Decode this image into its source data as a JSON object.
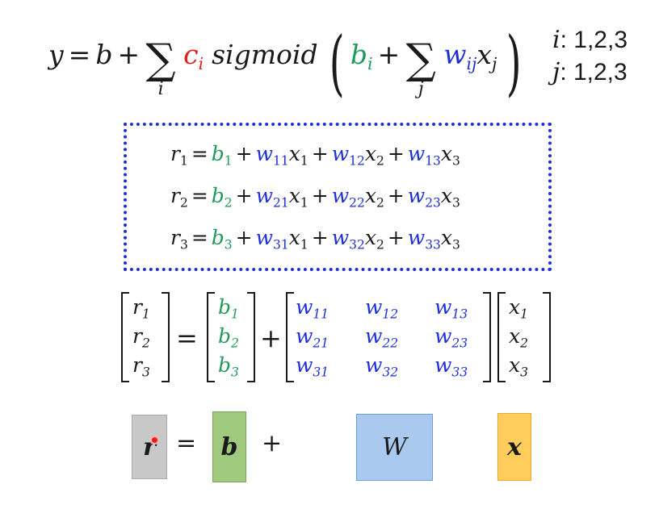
{
  "formula": {
    "y": "y",
    "eq": "=",
    "b": "b",
    "plus": "+",
    "sum": "∑",
    "sum_index_i": "i",
    "c": "c",
    "c_sub": "i",
    "sigmoid": "sigmoid",
    "lparen": "(",
    "rparen": ")",
    "b_i": "b",
    "b_i_sub": "i",
    "sum_index_j": "j",
    "w": "w",
    "w_sub": "ij",
    "x": "x",
    "x_sub": "j"
  },
  "ranges": {
    "i_label": "i",
    "i_values": ": 1,2,3",
    "j_label": "j",
    "j_values": ": 1,2,3"
  },
  "equations": [
    {
      "r": "r",
      "r_sub": "1",
      "b_sub": "1",
      "w1": "11",
      "w2": "12",
      "w3": "13"
    },
    {
      "r": "r",
      "r_sub": "2",
      "b_sub": "2",
      "w1": "21",
      "w2": "22",
      "w3": "23"
    },
    {
      "r": "r",
      "r_sub": "3",
      "b_sub": "3",
      "w1": "31",
      "w2": "32",
      "w3": "33"
    }
  ],
  "symbols": {
    "eq": "=",
    "plus": "+",
    "b": "b",
    "w": "w",
    "x": "x",
    "r": "r",
    "x_sub_1": "1",
    "x_sub_2": "2",
    "x_sub_3": "3"
  },
  "matrix": {
    "r_vec": [
      "1",
      "2",
      "3"
    ],
    "b_vec": [
      "1",
      "2",
      "3"
    ],
    "w_mat": [
      [
        "11",
        "12",
        "13"
      ],
      [
        "21",
        "22",
        "23"
      ],
      [
        "31",
        "32",
        "33"
      ]
    ],
    "x_vec": [
      "1",
      "2",
      "3"
    ]
  },
  "blocks": {
    "r": "r",
    "b": "b",
    "W": "W",
    "x": "x",
    "eq": "=",
    "plus": "+"
  },
  "colors": {
    "red": "#e0201b",
    "green": "#1f9a5a",
    "blue": "#1e2fd6",
    "box_border": "#1e2fd6",
    "r_block": "#c8c8c8",
    "b_block": "#9fc97c",
    "W_block": "#a9c9ee",
    "x_block": "#ffcd5c"
  }
}
